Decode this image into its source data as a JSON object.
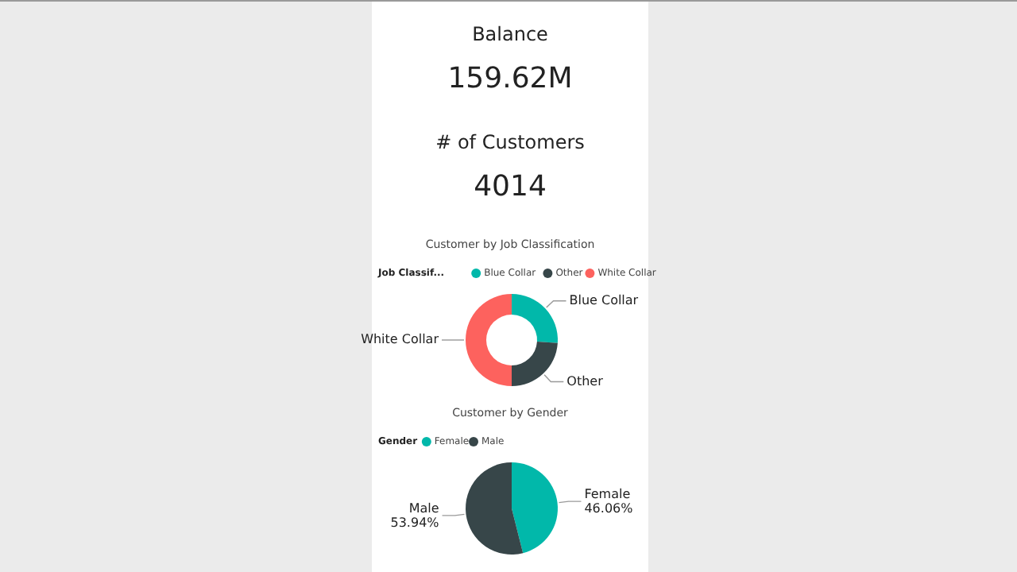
{
  "chart_data": [
    {
      "type": "other",
      "annotations": [
        "Balance",
        "159.62M",
        "# of Customers",
        "4014"
      ]
    },
    {
      "type": "donut",
      "title": "Customer by Job Classification",
      "legend_title": "Job Classif...",
      "legend": "top",
      "categories": [
        "Blue Collar",
        "Other",
        "White Collar"
      ],
      "values": [
        26,
        24,
        50
      ],
      "colors": [
        "#01b8aa",
        "#374649",
        "#fd625e"
      ]
    },
    {
      "type": "pie",
      "title": "Customer by Gender",
      "legend_title": "Gender",
      "legend": "top",
      "categories": [
        "Female",
        "Male"
      ],
      "values": [
        46.06,
        53.94
      ],
      "value_labels": [
        "46.06%",
        "53.94%"
      ],
      "colors": [
        "#01b8aa",
        "#374649"
      ]
    }
  ]
}
